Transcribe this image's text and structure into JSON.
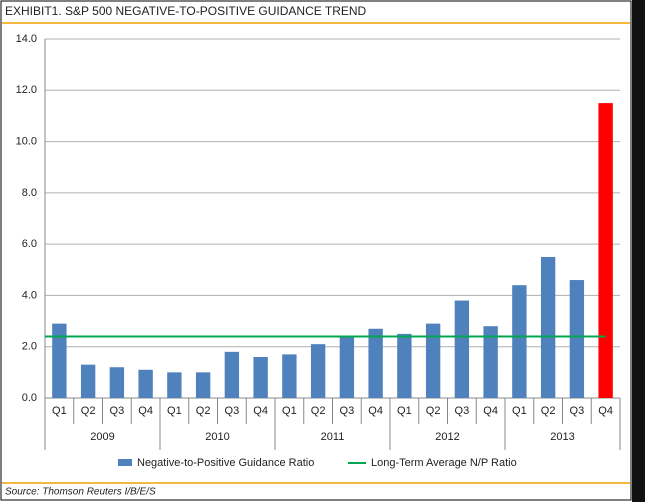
{
  "chart_data": {
    "type": "bar",
    "title": "EXHIBIT1. S&P 500 NEGATIVE-TO-POSITIVE GUIDANCE TREND",
    "source": "Source: Thomson Reuters I/B/E/S",
    "category_groups": [
      {
        "name": "2009",
        "categories": [
          "Q1",
          "Q2",
          "Q3",
          "Q4"
        ]
      },
      {
        "name": "2010",
        "categories": [
          "Q1",
          "Q2",
          "Q3",
          "Q4"
        ]
      },
      {
        "name": "2011",
        "categories": [
          "Q1",
          "Q2",
          "Q3",
          "Q4"
        ]
      },
      {
        "name": "2012",
        "categories": [
          "Q1",
          "Q2",
          "Q3",
          "Q4"
        ]
      },
      {
        "name": "2013",
        "categories": [
          "Q1",
          "Q2",
          "Q3",
          "Q4"
        ]
      }
    ],
    "series": [
      {
        "name": "Negative-to-Positive Guidance Ratio",
        "color": "#4f81bd",
        "bar_colors": [
          "#4f81bd",
          "#4f81bd",
          "#4f81bd",
          "#4f81bd",
          "#4f81bd",
          "#4f81bd",
          "#4f81bd",
          "#4f81bd",
          "#4f81bd",
          "#4f81bd",
          "#4f81bd",
          "#4f81bd",
          "#4f81bd",
          "#4f81bd",
          "#4f81bd",
          "#4f81bd",
          "#4f81bd",
          "#4f81bd",
          "#4f81bd",
          "#ff0000"
        ],
        "values": [
          2.9,
          1.3,
          1.2,
          1.1,
          1.0,
          1.0,
          1.8,
          1.6,
          1.7,
          2.1,
          2.4,
          2.7,
          2.5,
          2.9,
          3.8,
          2.8,
          4.4,
          5.5,
          4.6,
          11.5
        ]
      },
      {
        "name": "Long-Term Average N/P Ratio",
        "type": "hline",
        "color": "#00a650",
        "value": 2.4
      }
    ],
    "ylim": [
      0,
      14
    ],
    "yticks": [
      {
        "value": 0,
        "label": "0.0"
      },
      {
        "value": 2,
        "label": "2.0"
      },
      {
        "value": 4,
        "label": "4.0"
      },
      {
        "value": 6,
        "label": "6.0"
      },
      {
        "value": 8,
        "label": "8.0"
      },
      {
        "value": 10,
        "label": "10.0"
      },
      {
        "value": 12,
        "label": "12.0"
      },
      {
        "value": 14,
        "label": "14.0"
      }
    ],
    "grid": true
  }
}
